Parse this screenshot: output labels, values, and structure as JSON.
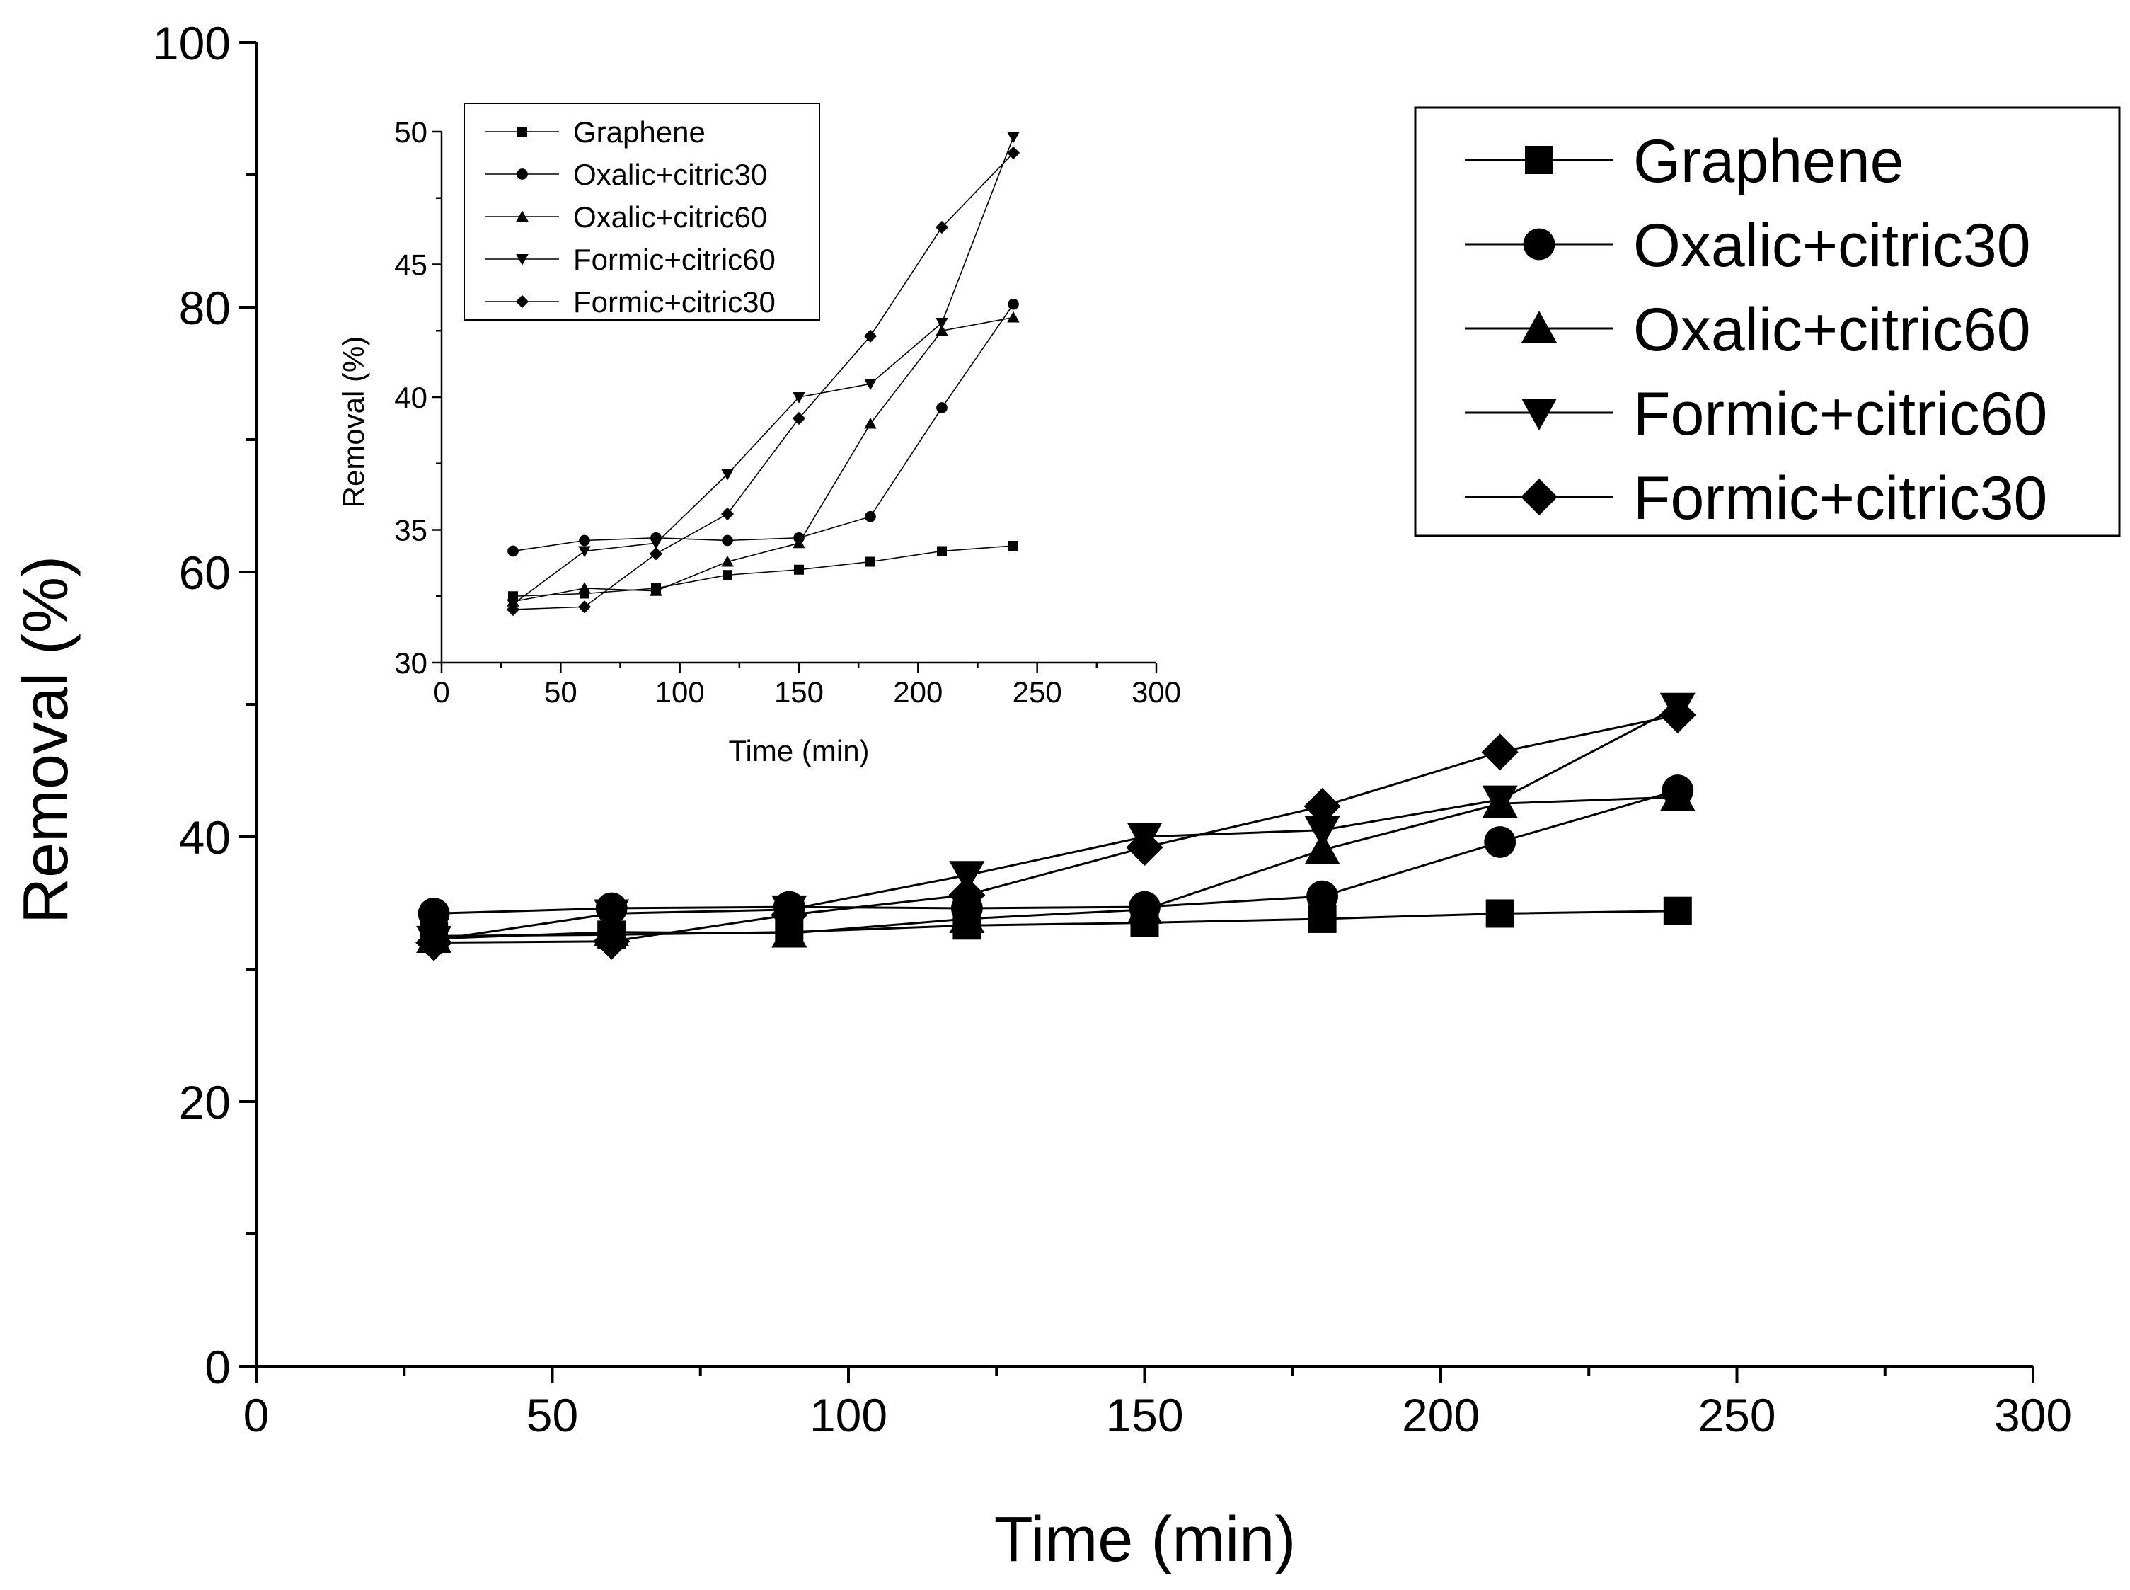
{
  "chart_data": [
    {
      "type": "line",
      "id": "main",
      "title": "",
      "xlabel": "Time (min)",
      "ylabel": "Removal (%)",
      "xlim": [
        0,
        300
      ],
      "ylim": [
        0,
        100
      ],
      "xticks": [
        0,
        50,
        100,
        150,
        200,
        250,
        300
      ],
      "yticks": [
        0,
        20,
        40,
        60,
        80,
        100
      ],
      "xtick_labels": [
        "0",
        "50",
        "100",
        "150",
        "200",
        "250",
        "300"
      ],
      "ytick_labels": [
        "0",
        "20",
        "40",
        "60",
        "80",
        "100"
      ],
      "grid": false,
      "legend_position": "top-right",
      "x": [
        30,
        60,
        90,
        120,
        150,
        180,
        210,
        240
      ],
      "series": [
        {
          "name": "Graphene",
          "marker": "square",
          "values": [
            32.5,
            32.6,
            32.8,
            33.3,
            33.5,
            33.8,
            34.2,
            34.4
          ]
        },
        {
          "name": "Oxalic+citric30",
          "marker": "circle",
          "values": [
            34.2,
            34.6,
            34.7,
            34.6,
            34.7,
            35.5,
            39.6,
            43.5
          ]
        },
        {
          "name": "Oxalic+citric60",
          "marker": "triangle-up",
          "values": [
            32.3,
            32.8,
            32.7,
            33.8,
            34.5,
            39.0,
            42.5,
            43.0
          ]
        },
        {
          "name": "Formic+citric60",
          "marker": "triangle-down",
          "values": [
            32.2,
            34.2,
            34.5,
            37.1,
            40.0,
            40.5,
            42.8,
            49.8
          ]
        },
        {
          "name": "Formic+citric30",
          "marker": "diamond",
          "values": [
            32.0,
            32.1,
            34.1,
            35.6,
            39.2,
            42.3,
            46.4,
            49.2
          ]
        }
      ]
    },
    {
      "type": "line",
      "id": "inset",
      "title": "",
      "xlabel": "Time (min)",
      "ylabel": "Removal (%)",
      "xlim": [
        0,
        300
      ],
      "ylim": [
        30,
        50
      ],
      "xticks": [
        0,
        50,
        100,
        150,
        200,
        250,
        300
      ],
      "yticks": [
        30,
        35,
        40,
        45,
        50
      ],
      "xtick_labels": [
        "0",
        "50",
        "100",
        "150",
        "200",
        "250",
        "300"
      ],
      "ytick_labels": [
        "30",
        "35",
        "40",
        "45",
        "50"
      ],
      "grid": false,
      "legend_position": "top-left",
      "x": [
        30,
        60,
        90,
        120,
        150,
        180,
        210,
        240
      ],
      "series": [
        {
          "name": "Graphene",
          "marker": "square",
          "values": [
            32.5,
            32.6,
            32.8,
            33.3,
            33.5,
            33.8,
            34.2,
            34.4
          ]
        },
        {
          "name": "Oxalic+citric30",
          "marker": "circle",
          "values": [
            34.2,
            34.6,
            34.7,
            34.6,
            34.7,
            35.5,
            39.6,
            43.5
          ]
        },
        {
          "name": "Oxalic+citric60",
          "marker": "triangle-up",
          "values": [
            32.3,
            32.8,
            32.7,
            33.8,
            34.5,
            39.0,
            42.5,
            43.0
          ]
        },
        {
          "name": "Formic+citric60",
          "marker": "triangle-down",
          "values": [
            32.2,
            34.2,
            34.5,
            37.1,
            40.0,
            40.5,
            42.8,
            49.8
          ]
        },
        {
          "name": "Formic+citric30",
          "marker": "diamond",
          "values": [
            32.0,
            32.1,
            34.1,
            35.6,
            39.2,
            42.3,
            46.4,
            49.2
          ]
        }
      ]
    }
  ]
}
